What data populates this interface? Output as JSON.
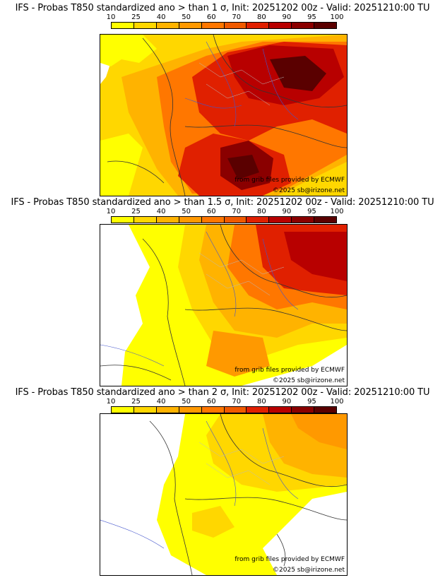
{
  "legend": {
    "ticks": [
      "10",
      "25",
      "40",
      "50",
      "60",
      "70",
      "80",
      "90",
      "95",
      "100"
    ],
    "colors": [
      "#ffff00",
      "#ffd700",
      "#ffb300",
      "#ff9900",
      "#ff7700",
      "#f05a00",
      "#e02000",
      "#b80000",
      "#8a0000",
      "#5a0000"
    ]
  },
  "panels": [
    {
      "title": "IFS - Probas T850  standardized ano > than 1 σ, Init: 20251202 00z - Valid: 20251210:00 TU",
      "source": "from grib files provided by ECMWF",
      "copyright": "©2025 sb@irizone.net"
    },
    {
      "title": "IFS - Probas T850  standardized ano > than 1.5 σ, Init: 20251202 00z - Valid: 20251210:00 TU",
      "source": "from grib files provided by ECMWF",
      "copyright": "©2025 sb@irizone.net"
    },
    {
      "title": "IFS - Probas T850  standardized ano > than 2 σ, Init: 20251202 00z - Valid: 20251210:00 TU",
      "source": "from grib files provided by ECMWF",
      "copyright": "©2025 sb@irizone.net"
    }
  ]
}
